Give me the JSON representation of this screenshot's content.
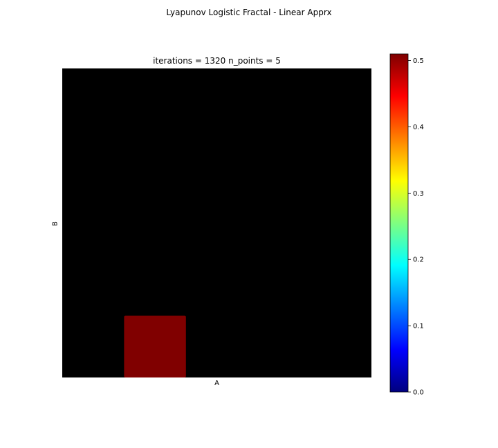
{
  "title": "Lyapunov Logistic Fractal - Linear Apprx",
  "chart_data": {
    "type": "heatmap",
    "subtitle": "iterations = 1320 n_points = 5",
    "xlabel": "A",
    "ylabel": "B",
    "grid": false,
    "colormap": "jet",
    "masked_color": "#000000",
    "clim": [
      0.0,
      0.51
    ],
    "colorbar": {
      "ticks": [
        0.0,
        0.1,
        0.2,
        0.3,
        0.4,
        0.5
      ],
      "tick_labels": [
        "0.0",
        "0.1",
        "0.2",
        "0.3",
        "0.4",
        "0.5"
      ],
      "placement": "right"
    },
    "n_rows": 5,
    "n_cols": 5,
    "values": [
      [
        null,
        null,
        null,
        null,
        null
      ],
      [
        null,
        null,
        null,
        null,
        null
      ],
      [
        null,
        null,
        null,
        null,
        null
      ],
      [
        null,
        null,
        null,
        null,
        null
      ],
      [
        null,
        0.51,
        null,
        null,
        null
      ]
    ],
    "highlight_color": "#800000"
  }
}
